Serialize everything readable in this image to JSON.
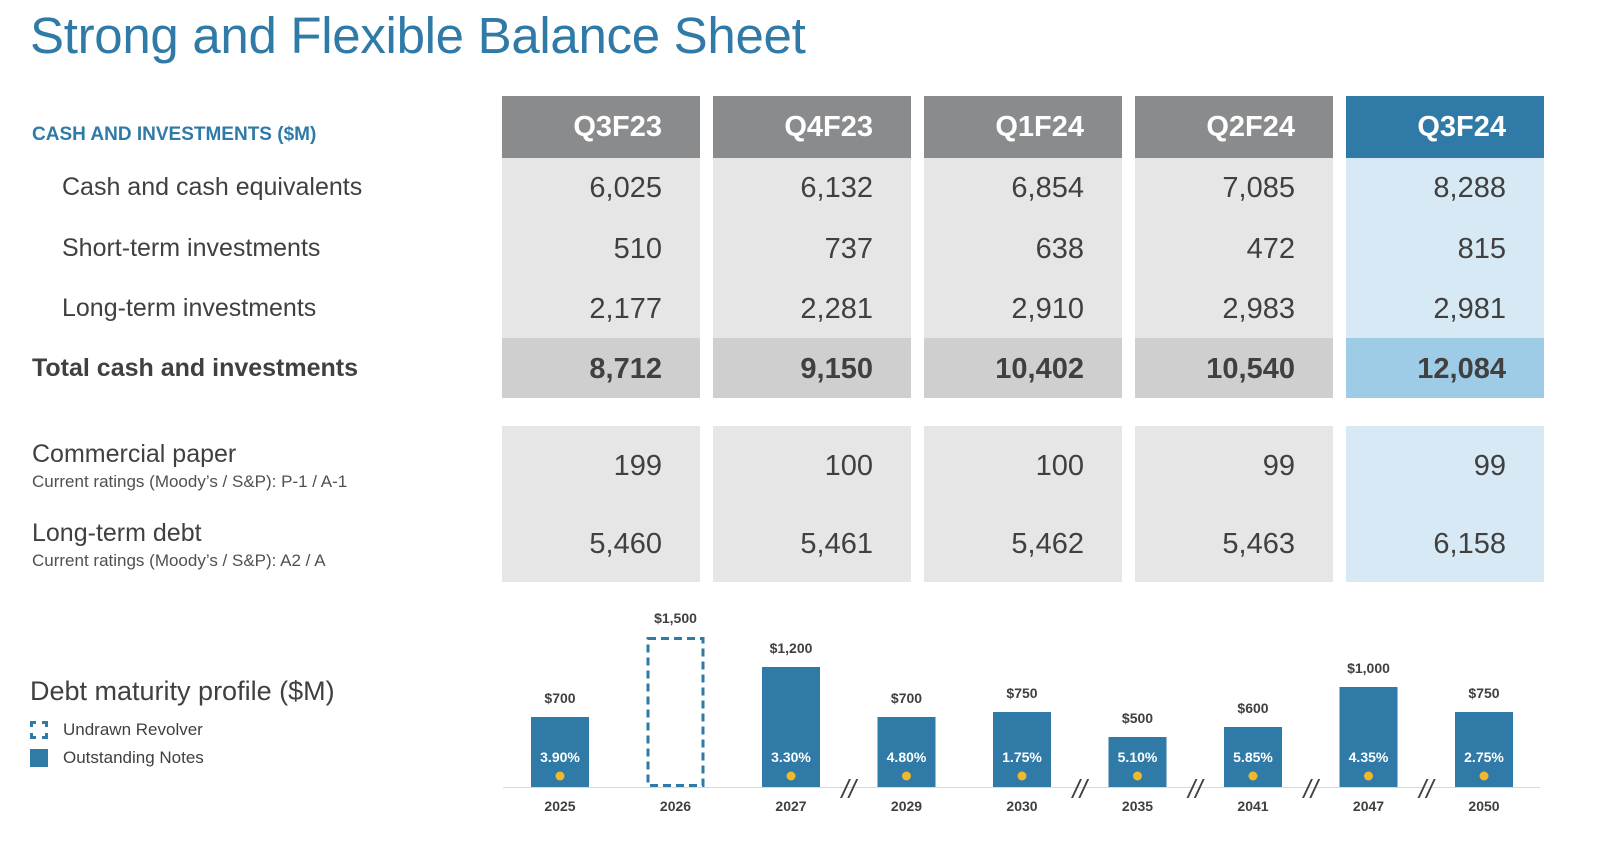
{
  "title": "Strong and Flexible Balance Sheet",
  "section_label": "CASH AND INVESTMENTS ($M)",
  "columns": [
    "Q3F23",
    "Q4F23",
    "Q1F24",
    "Q2F24",
    "Q3F24"
  ],
  "rows": {
    "cash": {
      "label": "Cash and cash equivalents",
      "values": [
        "6,025",
        "6,132",
        "6,854",
        "7,085",
        "8,288"
      ]
    },
    "short": {
      "label": "Short-term investments",
      "values": [
        "510",
        "737",
        "638",
        "472",
        "815"
      ]
    },
    "long": {
      "label": "Long-term investments",
      "values": [
        "2,177",
        "2,281",
        "2,910",
        "2,983",
        "2,981"
      ]
    },
    "total": {
      "label": "Total cash and investments",
      "values": [
        "8,712",
        "9,150",
        "10,402",
        "10,540",
        "12,084"
      ]
    },
    "cp": {
      "label": "Commercial paper",
      "sublabel": "Current ratings (Moody’s / S&P): P-1 / A-1",
      "values": [
        "199",
        "100",
        "100",
        "99",
        "99"
      ]
    },
    "ltd": {
      "label": "Long-term debt",
      "sublabel": "Current ratings (Moody’s / S&P): A2 / A",
      "values": [
        "5,460",
        "5,461",
        "5,462",
        "5,463",
        "6,158"
      ]
    }
  },
  "colors": {
    "accent": "#2f7aa6",
    "header_gray": "#8a8b8d",
    "dot": "#f0b92c"
  },
  "chart_data": {
    "type": "bar",
    "title": "Debt maturity profile ($M)",
    "legend": [
      "Undrawn Revolver",
      "Outstanding Notes"
    ],
    "categories": [
      "2025",
      "2026",
      "2027",
      "2029",
      "2030",
      "2035",
      "2041",
      "2047",
      "2050"
    ],
    "values": [
      700,
      1500,
      1200,
      700,
      750,
      500,
      600,
      1000,
      750
    ],
    "value_labels": [
      "$700",
      "$1,500",
      "$1,200",
      "$700",
      "$750",
      "$500",
      "$600",
      "$1,000",
      "$750"
    ],
    "rates": [
      "3.90%",
      "",
      "3.30%",
      "4.80%",
      "1.75%",
      "5.10%",
      "5.85%",
      "4.35%",
      "2.75%"
    ],
    "kinds": [
      "note",
      "revolver",
      "note",
      "note",
      "note",
      "note",
      "note",
      "note",
      "note"
    ],
    "break_marker": "//",
    "breaks_after": [
      "2027",
      "2030",
      "2035",
      "2041",
      "2047"
    ],
    "ylim": [
      0,
      1500
    ]
  }
}
